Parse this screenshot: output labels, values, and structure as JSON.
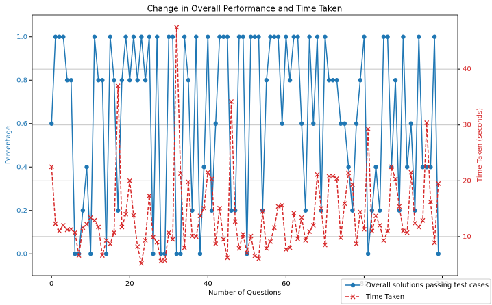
{
  "chart_data": {
    "type": "line",
    "title": "Change in Overall Performance and Time Taken",
    "xlabel": "Number of Questions",
    "ylabel": "Percentage",
    "y2label": "Time Taken (seconds)",
    "x": [
      0,
      1,
      2,
      3,
      4,
      5,
      6,
      7,
      8,
      9,
      10,
      11,
      12,
      13,
      14,
      15,
      16,
      17,
      18,
      19,
      20,
      21,
      22,
      23,
      24,
      25,
      26,
      27,
      28,
      29,
      30,
      31,
      32,
      33,
      34,
      35,
      36,
      37,
      38,
      39,
      40,
      41,
      42,
      43,
      44,
      45,
      46,
      47,
      48,
      49,
      50,
      51,
      52,
      53,
      54,
      55,
      56,
      57,
      58,
      59,
      60,
      61,
      62,
      63,
      64,
      65,
      66,
      67,
      68,
      69,
      70,
      71,
      72,
      73,
      74,
      75,
      76,
      77,
      78,
      79,
      80,
      81,
      82,
      83,
      84,
      85,
      86,
      87,
      88,
      89,
      90,
      91,
      92,
      93,
      94,
      95,
      96,
      97,
      98,
      99
    ],
    "series": [
      {
        "name": "Overall solutions passing test cases",
        "color": "#1f77b4",
        "marker": "circle",
        "dashed": false,
        "axis": "y",
        "values": [
          0.6,
          1.0,
          1.0,
          1.0,
          0.8,
          0.8,
          0.0,
          0.0,
          0.2,
          0.4,
          0.0,
          1.0,
          0.8,
          0.8,
          0.0,
          1.0,
          0.8,
          0.2,
          0.8,
          1.0,
          0.8,
          1.0,
          0.8,
          1.0,
          0.8,
          1.0,
          0.0,
          1.0,
          0.0,
          0.0,
          1.0,
          1.0,
          0.0,
          0.0,
          1.0,
          0.8,
          0.2,
          1.0,
          0.0,
          0.4,
          1.0,
          0.2,
          0.6,
          1.0,
          1.0,
          1.0,
          0.2,
          0.2,
          1.0,
          1.0,
          0.0,
          1.0,
          1.0,
          1.0,
          0.2,
          0.8,
          1.0,
          1.0,
          1.0,
          0.6,
          1.0,
          0.8,
          1.0,
          1.0,
          0.6,
          0.2,
          1.0,
          0.6,
          1.0,
          0.2,
          1.0,
          0.8,
          0.8,
          0.8,
          0.6,
          0.6,
          0.4,
          0.2,
          0.6,
          0.8,
          1.0,
          0.0,
          0.2,
          0.4,
          0.2,
          1.0,
          1.0,
          0.4,
          0.8,
          0.2,
          1.0,
          0.4,
          0.6,
          0.2,
          1.0,
          0.4,
          0.4,
          0.4,
          1.0,
          0.0
        ]
      },
      {
        "name": "Time Taken",
        "color": "#d62728",
        "marker": "x",
        "dashed": true,
        "axis": "y2",
        "values": [
          22.5,
          12.3,
          11,
          12,
          11.2,
          11.3,
          10.7,
          6.6,
          11.6,
          12.2,
          13.4,
          12.9,
          11.7,
          6.6,
          9.3,
          8.7,
          10.7,
          37,
          11.7,
          14,
          20,
          13.8,
          8.2,
          5.2,
          9.3,
          17.3,
          9.9,
          9,
          5.6,
          5.7,
          10.7,
          9.5,
          47.5,
          21.3,
          8,
          19.8,
          10.1,
          10,
          13.7,
          15.1,
          21.5,
          20.3,
          8.7,
          15.1,
          9.5,
          6.2,
          34.2,
          12.7,
          7.9,
          10.4,
          7.1,
          10.1,
          6.5,
          6,
          14.5,
          7.9,
          9.1,
          11.6,
          15.4,
          15.6,
          7.7,
          8,
          14.2,
          9.6,
          13.4,
          9.3,
          10.9,
          12,
          21.1,
          15.1,
          8.5,
          20.8,
          20.8,
          20.4,
          9.8,
          15.9,
          21.4,
          19.3,
          8.7,
          14.4,
          11.3,
          29.3,
          11,
          13.7,
          12,
          9.3,
          11,
          22.5,
          20.3,
          15.4,
          11,
          10.7,
          21.5,
          12.4,
          11.7,
          12.9,
          30.4,
          16.2,
          8.9,
          19.5
        ]
      }
    ],
    "xlim": [
      -4.95,
      103.95
    ],
    "xticks": [
      0,
      20,
      40,
      60,
      80,
      100
    ],
    "ylim": [
      -0.1,
      1.1
    ],
    "yticks": [
      {
        "value": 0,
        "label": "0.0"
      },
      0.2,
      0.4,
      0.6,
      0.8,
      {
        "value": 1,
        "label": "1.0"
      }
    ],
    "y2lim": [
      3.0,
      49.7
    ],
    "y2ticks": [
      10,
      20,
      30,
      40
    ],
    "y2grid": true,
    "legend": "lower right"
  }
}
